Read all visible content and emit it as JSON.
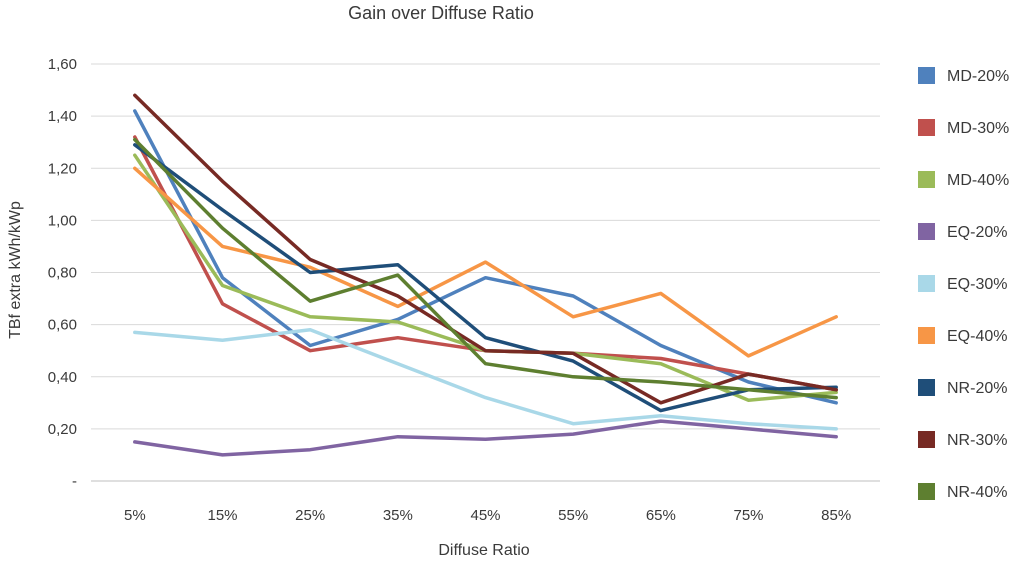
{
  "chart_data": {
    "type": "line",
    "title": "Gain over Diffuse Ratio",
    "xlabel": "Diffuse Ratio",
    "ylabel": "TBf extra kWh/kWp",
    "categories": [
      "5%",
      "15%",
      "25%",
      "35%",
      "45%",
      "55%",
      "65%",
      "75%",
      "85%"
    ],
    "ylim": [
      0,
      1.6
    ],
    "yticks": [
      0,
      0.2,
      0.4,
      0.6,
      0.8,
      1.0,
      1.2,
      1.4,
      1.6
    ],
    "ytick_labels": [
      "-",
      "0,20",
      "0,40",
      "0,60",
      "0,80",
      "1,00",
      "1,20",
      "1,40",
      "1,60"
    ],
    "grid": true,
    "legend_position": "right",
    "series": [
      {
        "name": "MD-20%",
        "color": "#4F81BD",
        "values": [
          1.42,
          0.78,
          0.52,
          0.62,
          0.78,
          0.71,
          0.52,
          0.38,
          0.3
        ]
      },
      {
        "name": "MD-30%",
        "color": "#C0504D",
        "values": [
          1.32,
          0.68,
          0.5,
          0.55,
          0.5,
          0.49,
          0.47,
          0.41,
          0.35
        ]
      },
      {
        "name": "MD-40%",
        "color": "#9BBB59",
        "values": [
          1.25,
          0.75,
          0.63,
          0.61,
          0.5,
          0.49,
          0.45,
          0.31,
          0.34
        ]
      },
      {
        "name": "EQ-20%",
        "color": "#8064A2",
        "values": [
          0.15,
          0.1,
          0.12,
          0.17,
          0.16,
          0.18,
          0.23,
          0.2,
          0.17
        ]
      },
      {
        "name": "EQ-30%",
        "color": "#A9D8E8",
        "values": [
          0.57,
          0.54,
          0.58,
          0.45,
          0.32,
          0.22,
          0.25,
          0.22,
          0.2
        ]
      },
      {
        "name": "EQ-40%",
        "color": "#F79646",
        "values": [
          1.2,
          0.9,
          0.82,
          0.67,
          0.84,
          0.63,
          0.72,
          0.48,
          0.63
        ]
      },
      {
        "name": "NR-20%",
        "color": "#1F4E79",
        "values": [
          1.29,
          1.04,
          0.8,
          0.83,
          0.55,
          0.46,
          0.27,
          0.35,
          0.36
        ]
      },
      {
        "name": "NR-30%",
        "color": "#772A24",
        "values": [
          1.48,
          1.15,
          0.85,
          0.71,
          0.5,
          0.49,
          0.3,
          0.41,
          0.35
        ]
      },
      {
        "name": "NR-40%",
        "color": "#5E7F30",
        "values": [
          1.31,
          0.97,
          0.69,
          0.79,
          0.45,
          0.4,
          0.38,
          0.35,
          0.32
        ]
      }
    ]
  }
}
